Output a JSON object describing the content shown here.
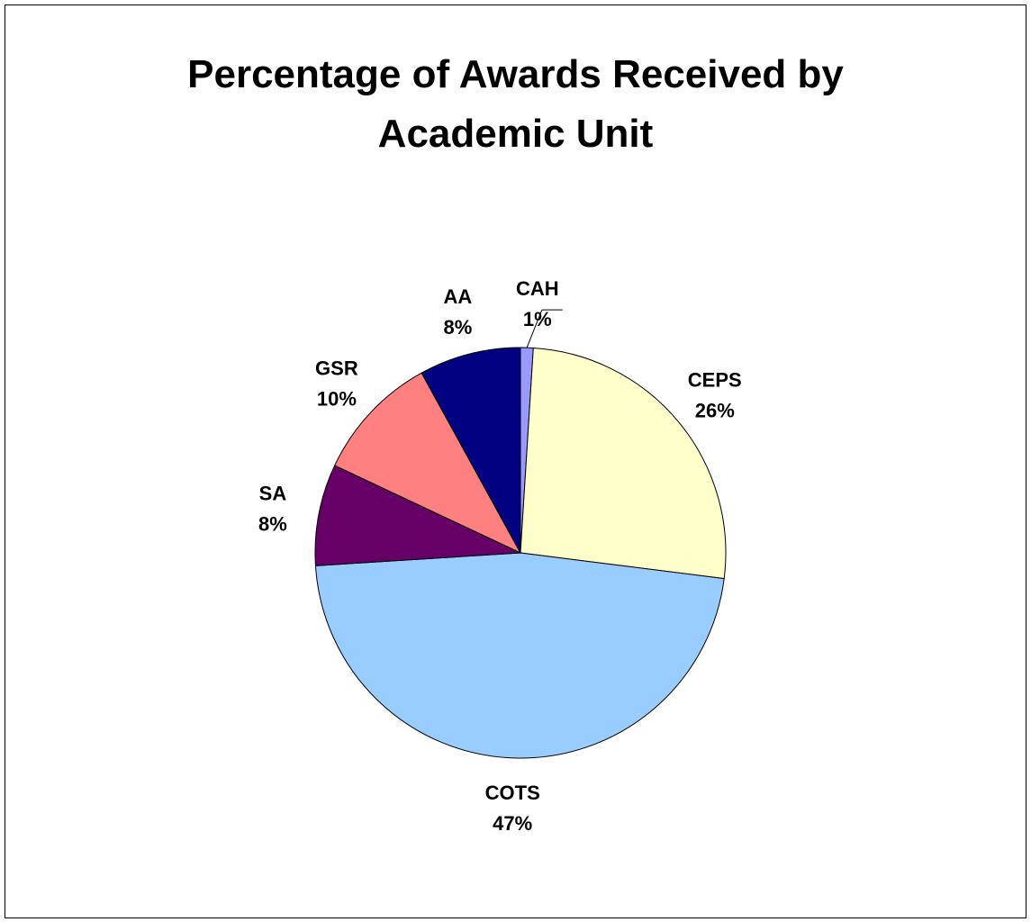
{
  "chart_data": {
    "type": "pie",
    "title": "Percentage of Awards Received by Academic Unit",
    "categories": [
      "CAH",
      "CEPS",
      "COTS",
      "SA",
      "GSR",
      "AA"
    ],
    "values": [
      1,
      26,
      47,
      8,
      10,
      8
    ],
    "value_labels": [
      "1%",
      "26%",
      "47%",
      "8%",
      "10%",
      "8%"
    ],
    "colors": [
      "#9999ff",
      "#ffffcc",
      "#99ccff",
      "#660066",
      "#ff8080",
      "#000080"
    ]
  }
}
